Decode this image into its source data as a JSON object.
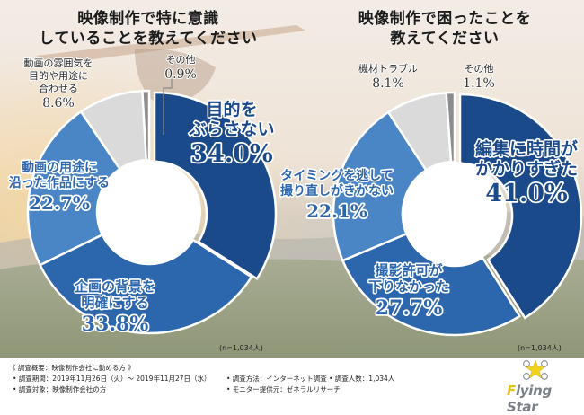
{
  "chart_data": [
    {
      "type": "pie",
      "variant": "donut",
      "title": "映像制作で特に意識していることを教えてください",
      "title_lines": [
        "映像制作で特に意識",
        "していることを教えてください"
      ],
      "sample_note": "(n=1,034人)",
      "unit": "%",
      "slices": [
        {
          "label_lines": [
            "目的を",
            "ぶらさない"
          ],
          "value": 34.0,
          "value_text": "34.0%",
          "color": "#1b4a8a",
          "label_style": "inside"
        },
        {
          "label_lines": [
            "企画の背景を",
            "明確にする"
          ],
          "value": 33.8,
          "value_text": "33.8%",
          "color": "#2c66ad",
          "label_style": "inside"
        },
        {
          "label_lines": [
            "動画の用途に",
            "沿った作品にする"
          ],
          "value": 22.7,
          "value_text": "22.7%",
          "color": "#4a86c6",
          "label_style": "inside"
        },
        {
          "label_lines": [
            "動画の雰囲気を",
            "目的や用途に",
            "合わせる"
          ],
          "value": 8.6,
          "value_text": "8.6%",
          "color": "#dadada",
          "label_style": "outside"
        },
        {
          "label_lines": [
            "その他"
          ],
          "value": 0.9,
          "value_text": "0.9%",
          "color": "#8c8c8c",
          "label_style": "outside"
        }
      ]
    },
    {
      "type": "pie",
      "variant": "donut",
      "title": "映像制作で困ったことを教えてください",
      "title_lines": [
        "映像制作で困ったことを",
        "教えてください"
      ],
      "sample_note": "(n=1,034人)",
      "unit": "%",
      "slices": [
        {
          "label_lines": [
            "編集に時間が",
            "かかりすぎた"
          ],
          "value": 41.0,
          "value_text": "41.0%",
          "color": "#1b4a8a",
          "label_style": "inside"
        },
        {
          "label_lines": [
            "撮影許可が",
            "下りなかった"
          ],
          "value": 27.7,
          "value_text": "27.7%",
          "color": "#2c66ad",
          "label_style": "inside"
        },
        {
          "label_lines": [
            "タイミングを逃して",
            "撮り直しがきかない"
          ],
          "value": 22.1,
          "value_text": "22.1%",
          "color": "#4a86c6",
          "label_style": "inside"
        },
        {
          "label_lines": [
            "機材トラブル"
          ],
          "value": 8.1,
          "value_text": "8.1%",
          "color": "#dadada",
          "label_style": "outside"
        },
        {
          "label_lines": [
            "その他"
          ],
          "value": 1.1,
          "value_text": "1.1%",
          "color": "#8c8c8c",
          "label_style": "outside"
        }
      ]
    }
  ],
  "survey": {
    "heading": "《 調査概要：映像制作会社に勤める方 》",
    "items": [
      "• 調査期間：2019年11月26日（火）～ 2019年11月27日（水）",
      "• 調査方法：インターネット調査",
      "• 調査人数：1,034人",
      "• 調査対象：映像制作会社の方",
      "• モニター提供元：ゼネラルリサーチ"
    ]
  },
  "logo": {
    "name": "Flying Star",
    "first_letter": "F",
    "rest": "lying Star",
    "icon": "drone-star-icon",
    "star_color": "#f2d21b",
    "text_color": "#7a7f86"
  }
}
